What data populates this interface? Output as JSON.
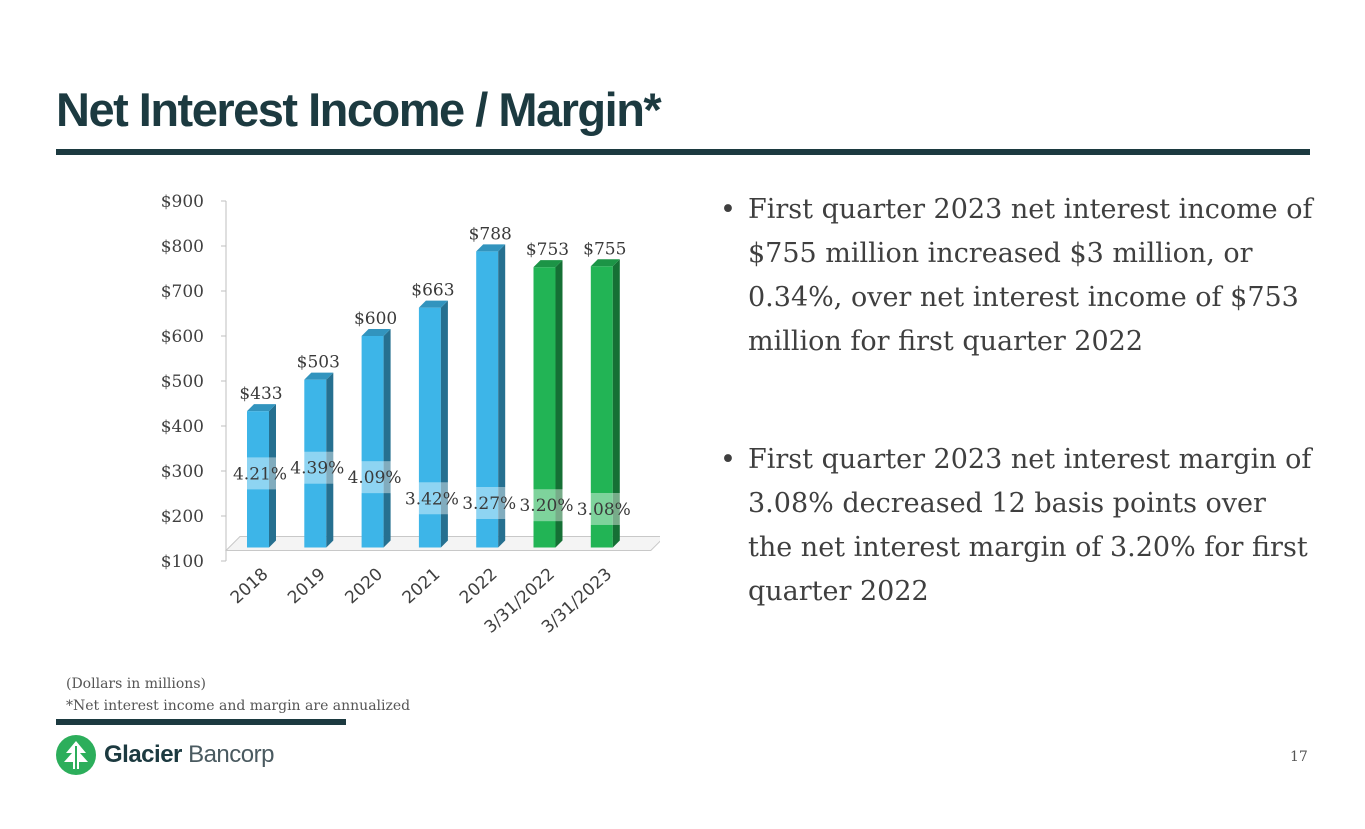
{
  "title": "Net Interest Income / Margin*",
  "bullets": [
    "First quarter 2023 net interest income of $755 million increased $3 million, or 0.34%, over net interest income of $753 million for first quarter 2022",
    "First quarter 2023 net interest margin of 3.08% decreased 12 basis points over the net interest margin of 3.20% for first quarter 2022"
  ],
  "bullet_symbol": "•",
  "footnotes": {
    "units": "(Dollars in millions)",
    "annualized": "*Net interest income and margin are annualized"
  },
  "logo": {
    "name_bold": "Glacier",
    "name_light": "Bancorp"
  },
  "page_number": "17",
  "colors": {
    "title": "#1c3a40",
    "annual_bar": "#3db5e8",
    "quarter_bar": "#22b455",
    "logo_green": "#2cae5b"
  },
  "chart_data": {
    "type": "bar",
    "categories": [
      "2018",
      "2019",
      "2020",
      "2021",
      "2022",
      "3/31/2022",
      "3/31/2023"
    ],
    "series": [
      {
        "name": "Net Interest Income ($ millions)",
        "values": [
          433,
          503,
          600,
          663,
          788,
          753,
          755
        ],
        "labels": [
          "$433",
          "$503",
          "$600",
          "$663",
          "$788",
          "$753",
          "$755"
        ]
      },
      {
        "name": "Net Interest Margin",
        "values": [
          4.21,
          4.39,
          4.09,
          3.42,
          3.27,
          3.2,
          3.08
        ],
        "labels": [
          "4.21%",
          "4.39%",
          "4.09%",
          "3.42%",
          "3.27%",
          "3.20%",
          "3.08%"
        ]
      }
    ],
    "bar_colors": [
      "annual",
      "annual",
      "annual",
      "annual",
      "annual",
      "quarter",
      "quarter"
    ],
    "ylim": [
      100,
      900
    ],
    "yticks": [
      900,
      800,
      700,
      600,
      500,
      400,
      300,
      200,
      100
    ],
    "ytick_labels": [
      "$900",
      "$800",
      "$700",
      "$600",
      "$500",
      "$400",
      "$300",
      "$200",
      "$100"
    ],
    "title": "",
    "xlabel": "",
    "ylabel": ""
  }
}
